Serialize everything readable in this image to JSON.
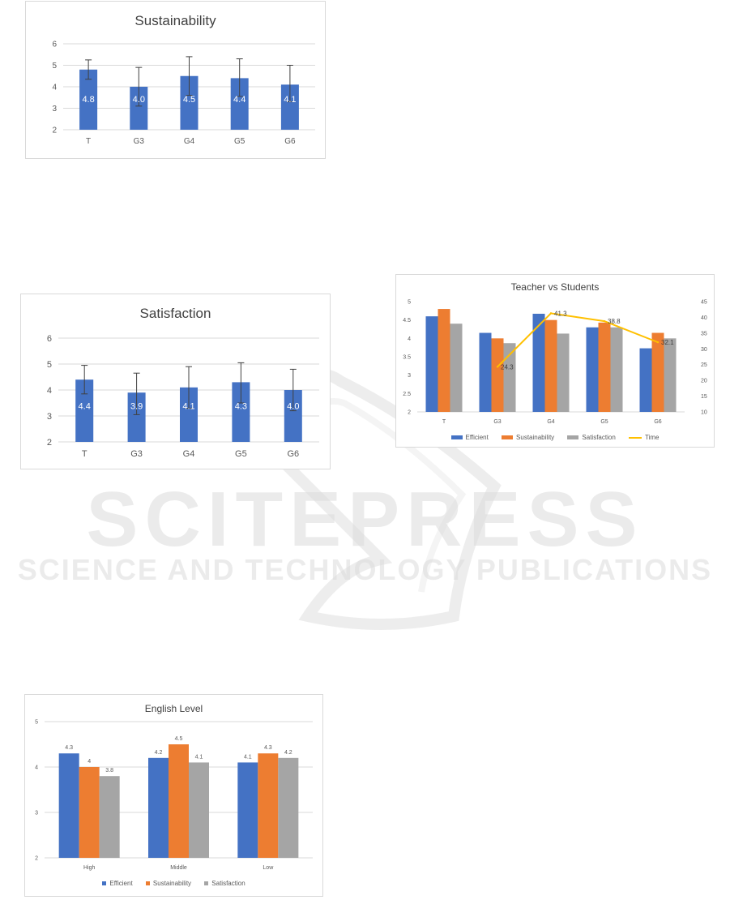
{
  "colors": {
    "efficient": "#4472c4",
    "sustainability": "#ed7d31",
    "satisfaction": "#a5a5a5",
    "time": "#ffc000",
    "grid": "#d9d9d9",
    "axis_text": "#595959"
  },
  "watermark": {
    "line1": "SCITEPRESS",
    "line2": "SCIENCE AND TECHNOLOGY PUBLICATIONS"
  },
  "chart_data": [
    {
      "id": "sustainability",
      "type": "bar",
      "title": "Sustainability",
      "categories": [
        "T",
        "G3",
        "G4",
        "G5",
        "G6"
      ],
      "values": [
        4.8,
        4.0,
        4.5,
        4.4,
        4.1
      ],
      "data_labels": [
        "4.8",
        "4.0",
        "4.5",
        "4.4",
        "4.1"
      ],
      "error_bars": [
        [
          4.35,
          5.25
        ],
        [
          3.1,
          4.9
        ],
        [
          3.6,
          5.4
        ],
        [
          3.55,
          5.3
        ],
        [
          3.3,
          5.0
        ]
      ],
      "ylim": [
        2,
        6
      ],
      "y_ticks": [
        "2",
        "3",
        "4",
        "5",
        "6"
      ],
      "grid": true
    },
    {
      "id": "satisfaction",
      "type": "bar",
      "title": "Satisfaction",
      "categories": [
        "T",
        "G3",
        "G4",
        "G5",
        "G6"
      ],
      "values": [
        4.4,
        3.9,
        4.1,
        4.3,
        4.0
      ],
      "data_labels": [
        "4.4",
        "3.9",
        "4.1",
        "4.3",
        "4.0"
      ],
      "error_bars": [
        [
          3.85,
          4.95
        ],
        [
          3.05,
          4.65
        ],
        [
          3.3,
          4.9
        ],
        [
          3.5,
          5.05
        ],
        [
          3.2,
          4.8
        ]
      ],
      "ylim": [
        2,
        6
      ],
      "y_ticks": [
        "2",
        "3",
        "4",
        "5",
        "6"
      ],
      "grid": true
    },
    {
      "id": "teacher-vs-students",
      "type": "bar",
      "title": "Teacher vs Students",
      "categories": [
        "T",
        "G3",
        "G4",
        "G5",
        "G6"
      ],
      "series": [
        {
          "name": "Efficient",
          "values": [
            4.6,
            4.15,
            4.67,
            4.3,
            3.73
          ]
        },
        {
          "name": "Sustainability",
          "values": [
            4.8,
            4.0,
            4.5,
            4.43,
            4.15
          ]
        },
        {
          "name": "Satisfaction",
          "values": [
            4.4,
            3.87,
            4.13,
            4.3,
            4.0
          ]
        }
      ],
      "line_series": {
        "name": "Time",
        "axis": "secondary",
        "values": [
          null,
          24.3,
          41.3,
          38.8,
          32.1
        ],
        "labels": [
          "",
          "24.3",
          "41.3",
          "38.8",
          "32.1"
        ]
      },
      "ylim": [
        2,
        5
      ],
      "y_ticks": [
        "2",
        "2.5",
        "3",
        "3.5",
        "4",
        "4.5",
        "5"
      ],
      "y2lim": [
        10,
        45
      ],
      "y2_ticks": [
        "10",
        "15",
        "20",
        "25",
        "30",
        "35",
        "40",
        "45"
      ],
      "grid": false,
      "legend": "bottom"
    },
    {
      "id": "english-level",
      "type": "bar",
      "title": "English Level",
      "categories": [
        "High",
        "Middle",
        "Low"
      ],
      "series": [
        {
          "name": "Efficient",
          "values": [
            4.3,
            4.2,
            4.1
          ],
          "labels": [
            "4.3",
            "4.2",
            "4.1"
          ]
        },
        {
          "name": "Sustainability",
          "values": [
            4.0,
            4.5,
            4.3
          ],
          "labels": [
            "4",
            "4.5",
            "4.3"
          ]
        },
        {
          "name": "Satisfaction",
          "values": [
            3.8,
            4.1,
            4.2
          ],
          "labels": [
            "3.8",
            "4.1",
            "4.2"
          ]
        }
      ],
      "ylim": [
        2,
        5
      ],
      "y_ticks": [
        "2",
        "3",
        "4",
        "5"
      ],
      "grid": true,
      "legend": "bottom"
    }
  ]
}
